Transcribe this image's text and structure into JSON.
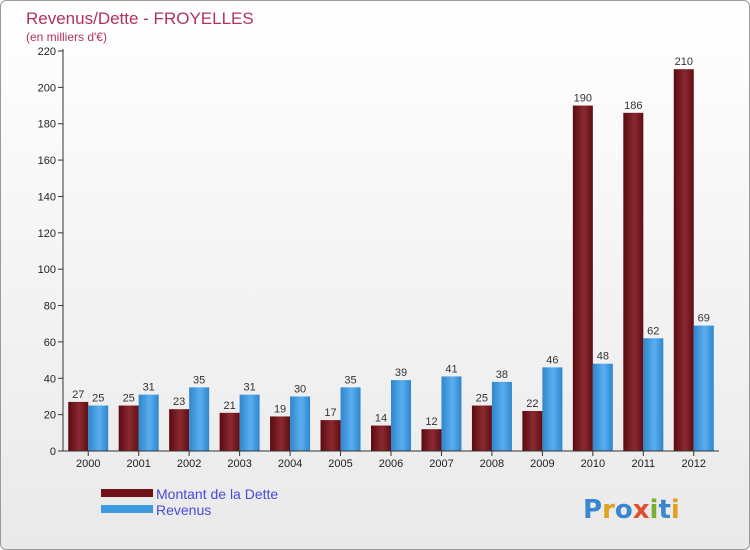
{
  "chart_data": {
    "type": "bar",
    "title": "Revenus/Dette - FROYELLES",
    "subtitle": "(en milliers d'€)",
    "categories": [
      "2000",
      "2001",
      "2002",
      "2003",
      "2004",
      "2005",
      "2006",
      "2007",
      "2008",
      "2009",
      "2010",
      "2011",
      "2012"
    ],
    "series": [
      {
        "name": "Montant de la Dette",
        "color": "#6e1118",
        "values": [
          27,
          25,
          23,
          21,
          19,
          17,
          14,
          12,
          25,
          22,
          190,
          186,
          210
        ]
      },
      {
        "name": "Revenus",
        "color": "#3f9be0",
        "values": [
          25,
          31,
          35,
          31,
          30,
          35,
          39,
          41,
          38,
          46,
          48,
          62,
          69
        ]
      }
    ],
    "yticks": [
      "0",
      "20",
      "40",
      "60",
      "80",
      "100",
      "120",
      "140",
      "160",
      "180",
      "200",
      "220"
    ],
    "ylim": [
      0,
      220
    ],
    "grid": false,
    "legend_position": "bottom-left"
  },
  "logo": {
    "letters": [
      {
        "char": "P",
        "color": "#3a86d0"
      },
      {
        "char": "r",
        "color": "#e0a020"
      },
      {
        "char": "o",
        "color": "#3a86d0"
      },
      {
        "char": "x",
        "color": "#e05030"
      },
      {
        "char": "i",
        "color": "#7ab030"
      },
      {
        "char": "t",
        "color": "#3a86d0"
      },
      {
        "char": "i",
        "color": "#e0a020"
      }
    ]
  }
}
